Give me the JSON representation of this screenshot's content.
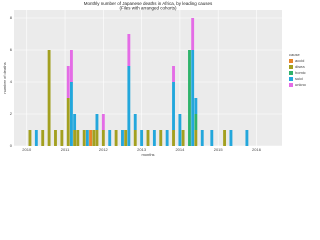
{
  "chart_data": {
    "type": "bar",
    "title": "Monthly number of Japanese deaths in Africa, by leading causes",
    "subtitle": "(Files with arranged cohorts)",
    "x_label": "months",
    "y_label": "number of deaths",
    "legend_title": "cause",
    "x": [
      "2010-02",
      "2010-04",
      "2010-06",
      "2010-08",
      "2010-10",
      "2010-12",
      "2011-02",
      "2011-03",
      "2011-04",
      "2011-05",
      "2011-07",
      "2011-08",
      "2011-09",
      "2011-10",
      "2011-11",
      "2012-01",
      "2012-03",
      "2012-05",
      "2012-07",
      "2012-08",
      "2012-09",
      "2012-11",
      "2013-01",
      "2013-03",
      "2013-05",
      "2013-07",
      "2013-09",
      "2013-11",
      "2014-01",
      "2014-02",
      "2014-04",
      "2014-05",
      "2014-06",
      "2014-08",
      "2014-11",
      "2015-03",
      "2015-05",
      "2015-10"
    ],
    "series": [
      {
        "name": "accid",
        "color": "#e8842a",
        "values": [
          0,
          0,
          0,
          0,
          0,
          0,
          0,
          0,
          0,
          0,
          0,
          0,
          1,
          0,
          0,
          0,
          0,
          0,
          0,
          0,
          0,
          0,
          0,
          0,
          0,
          0,
          0,
          0,
          0,
          0,
          0,
          0,
          0,
          0,
          0,
          0,
          0,
          0
        ]
      },
      {
        "name": "disea",
        "color": "#a3a020",
        "values": [
          1,
          0,
          1,
          6,
          1,
          1,
          3,
          0,
          1,
          1,
          1,
          0,
          0,
          1,
          1,
          1,
          0,
          1,
          0,
          1,
          0,
          1,
          0,
          1,
          0,
          1,
          0,
          1,
          0,
          1,
          0,
          0,
          1,
          0,
          0,
          1,
          0,
          0
        ]
      },
      {
        "name": "homic",
        "color": "#2fb36b",
        "values": [
          0,
          0,
          0,
          0,
          0,
          0,
          0,
          0,
          0,
          0,
          0,
          0,
          0,
          0,
          0,
          0,
          0,
          0,
          0,
          0,
          0,
          0,
          0,
          0,
          0,
          0,
          0,
          0,
          0,
          0,
          6,
          0,
          1,
          0,
          0,
          0,
          0,
          0
        ]
      },
      {
        "name": "suici",
        "color": "#23a7dc",
        "values": [
          0,
          1,
          0,
          0,
          0,
          0,
          0,
          4,
          1,
          0,
          0,
          1,
          0,
          0,
          1,
          0,
          1,
          0,
          1,
          0,
          5,
          1,
          1,
          0,
          1,
          0,
          1,
          3,
          2,
          0,
          0,
          6,
          1,
          1,
          1,
          0,
          1,
          1
        ]
      },
      {
        "name": "unkno",
        "color": "#e46ce6",
        "values": [
          0,
          0,
          0,
          0,
          0,
          0,
          2,
          2,
          0,
          0,
          0,
          0,
          0,
          0,
          0,
          1,
          0,
          0,
          0,
          0,
          2,
          0,
          0,
          0,
          0,
          0,
          0,
          1,
          0,
          0,
          0,
          2,
          0,
          0,
          0,
          0,
          0,
          0
        ]
      }
    ],
    "xlim": [
      "2009-09",
      "2016-09"
    ],
    "xticks": [
      {
        "value": "2010-01",
        "label": "2010"
      },
      {
        "value": "2011-01",
        "label": "2011"
      },
      {
        "value": "2012-01",
        "label": "2012"
      },
      {
        "value": "2013-01",
        "label": "2013"
      },
      {
        "value": "2014-01",
        "label": "2014"
      },
      {
        "value": "2015-01",
        "label": "2015"
      },
      {
        "value": "2016-01",
        "label": "2016"
      }
    ],
    "ylim": [
      0,
      8.5
    ],
    "yticks": [
      0,
      2,
      4,
      6,
      8
    ],
    "grid": true
  }
}
